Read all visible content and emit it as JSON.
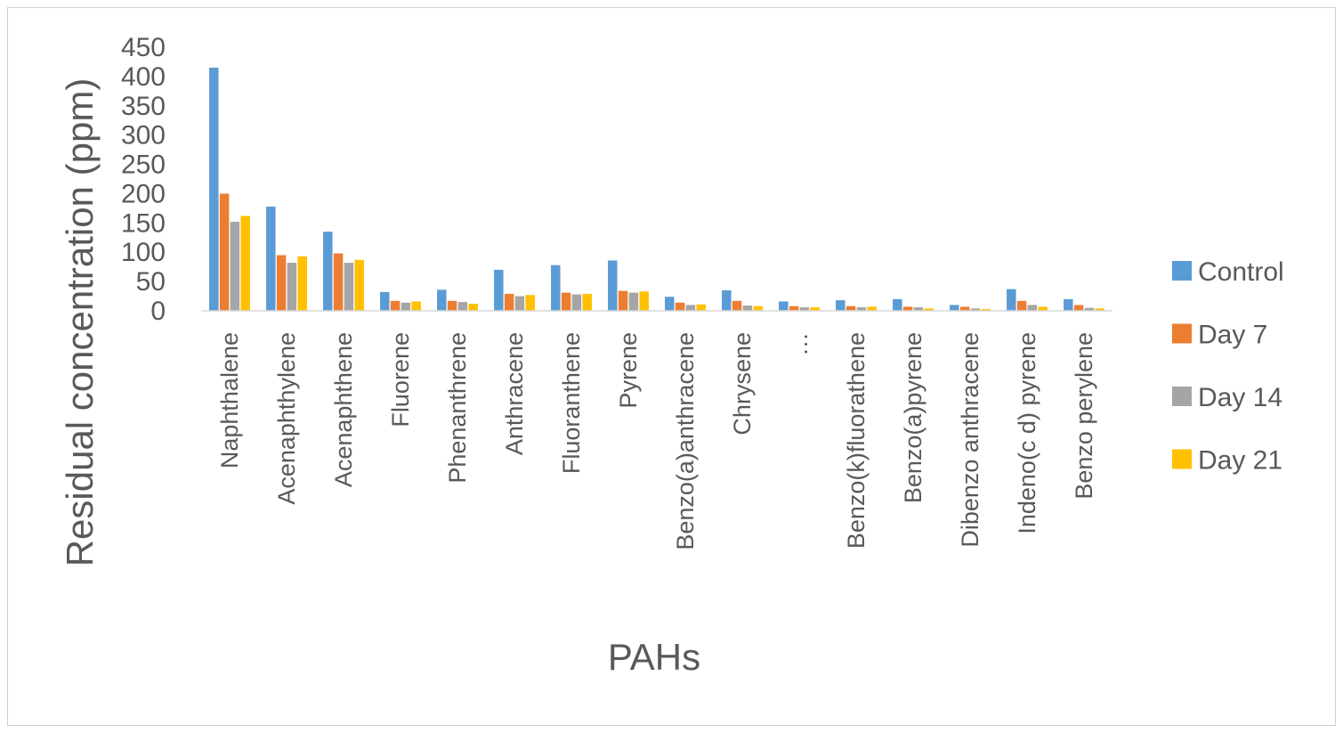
{
  "chart_data": {
    "type": "bar",
    "xlabel": "PAHs",
    "ylabel": "Residual concentration (ppm)",
    "ylim": [
      0,
      450
    ],
    "yticks": [
      "0",
      "50",
      "100",
      "150",
      "200",
      "250",
      "300",
      "350",
      "400",
      "450"
    ],
    "grid": false,
    "legend_position": "right",
    "categories": [
      "Naphthalene",
      "Acenaphthylene",
      "Acenaphthene",
      "Fluorene",
      "Phenanthrene",
      "Anthracene",
      "Fluoranthene",
      "Pyrene",
      "Benzo(a)anthracene",
      "Chrysene",
      "…",
      "Benzo(k)fluorathene",
      "Benzo(a)pyrene",
      "Dibenzo anthracene",
      "Indeno(c d) pyrene",
      "Benzo perylene"
    ],
    "series": [
      {
        "name": "Control",
        "color": "#5B9BD5",
        "values": [
          415,
          178,
          135,
          32,
          36,
          70,
          78,
          86,
          24,
          35,
          16,
          18,
          20,
          10,
          37,
          20
        ]
      },
      {
        "name": "Day 7",
        "color": "#ED7D31",
        "values": [
          200,
          95,
          98,
          17,
          17,
          29,
          31,
          34,
          14,
          17,
          8,
          8,
          7,
          7,
          17,
          10
        ]
      },
      {
        "name": "Day 14",
        "color": "#A5A5A5",
        "values": [
          152,
          82,
          82,
          14,
          15,
          25,
          28,
          31,
          10,
          9,
          6,
          6,
          6,
          4,
          10,
          5
        ]
      },
      {
        "name": "Day 21",
        "color": "#FFC000",
        "values": [
          162,
          93,
          87,
          16,
          12,
          27,
          29,
          33,
          11,
          8,
          6,
          7,
          4,
          3,
          7,
          4
        ]
      }
    ]
  }
}
